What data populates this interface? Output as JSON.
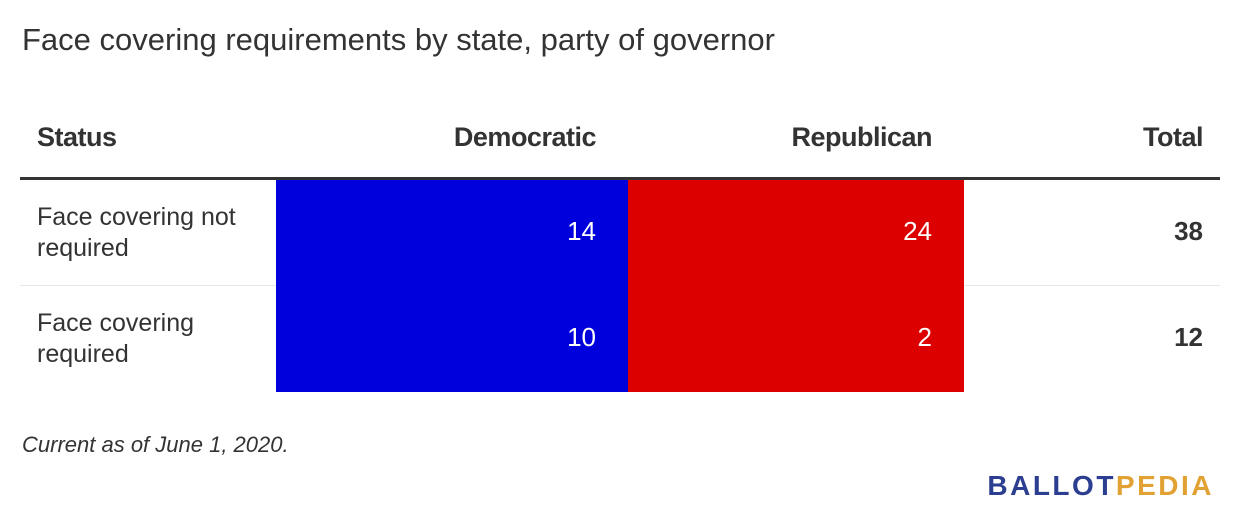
{
  "title": "Face covering requirements by state, party of governor",
  "chart_data": {
    "type": "table",
    "columns": [
      "Status",
      "Democratic",
      "Republican",
      "Total"
    ],
    "rows": [
      {
        "status": "Face covering not required",
        "democratic": 14,
        "republican": 24,
        "total": 38
      },
      {
        "status": "Face covering required",
        "democratic": 10,
        "republican": 2,
        "total": 12
      }
    ],
    "colors": {
      "democratic": "#0000dd",
      "republican": "#dd0000"
    }
  },
  "footnote": "Current as of June 1, 2020.",
  "logo": {
    "part1": "BALLOT",
    "part2": "PEDIA",
    "color1": "#2b3e8f",
    "color2": "#e2a233"
  }
}
